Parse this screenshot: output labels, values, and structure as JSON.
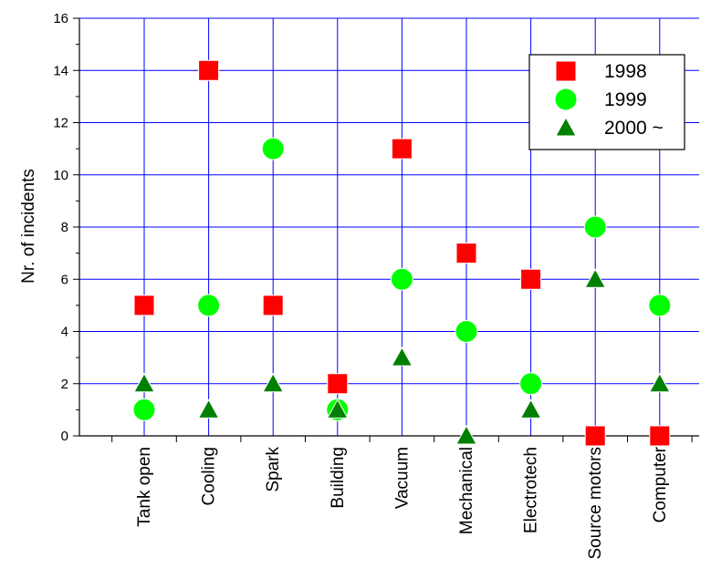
{
  "chart_data": {
    "type": "scatter",
    "title": "",
    "xlabel": "",
    "ylabel": "Nr. of incidents",
    "categories": [
      "Tank open",
      "Cooling",
      "Spark",
      "Building",
      "Vacuum",
      "Mechanical",
      "Electrotech",
      "Source motors",
      "Computer"
    ],
    "ylim": [
      0,
      16
    ],
    "yticks": [
      "0",
      "2",
      "4",
      "6",
      "8",
      "10",
      "12",
      "14",
      "16"
    ],
    "grid": true,
    "legend_position": "top-right",
    "series": [
      {
        "name": "1998",
        "marker": "square",
        "color": "#ff0000",
        "values": [
          5,
          14,
          5,
          2,
          11,
          7,
          6,
          0,
          0
        ]
      },
      {
        "name": "1999",
        "marker": "circle",
        "color": "#00ff00",
        "values": [
          1,
          5,
          11,
          1,
          6,
          4,
          2,
          8,
          5
        ]
      },
      {
        "name": "2000 ~",
        "marker": "triangle",
        "color": "#008000",
        "values": [
          2,
          1,
          2,
          1,
          3,
          0,
          1,
          6,
          2
        ]
      }
    ],
    "colors": {
      "grid": "#0000ff",
      "axis": "#000000"
    }
  }
}
